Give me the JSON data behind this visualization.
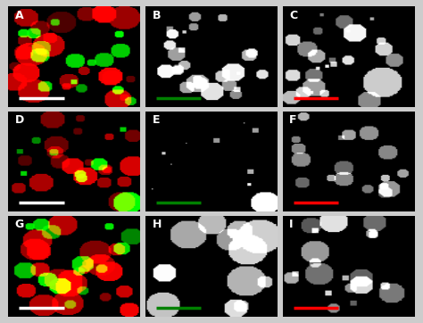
{
  "grid_rows": 3,
  "grid_cols": 3,
  "labels": [
    "A",
    "B",
    "C",
    "D",
    "E",
    "F",
    "G",
    "H",
    "I"
  ],
  "scale_bar_colors": [
    [
      "white",
      "green",
      "red"
    ],
    [
      "white",
      "green",
      "red"
    ],
    [
      "white",
      "green",
      "red"
    ]
  ],
  "outer_bg": "#cccccc",
  "label_color": "white",
  "label_fontsize": 9,
  "figsize": [
    4.74,
    3.62
  ],
  "dpi": 100
}
